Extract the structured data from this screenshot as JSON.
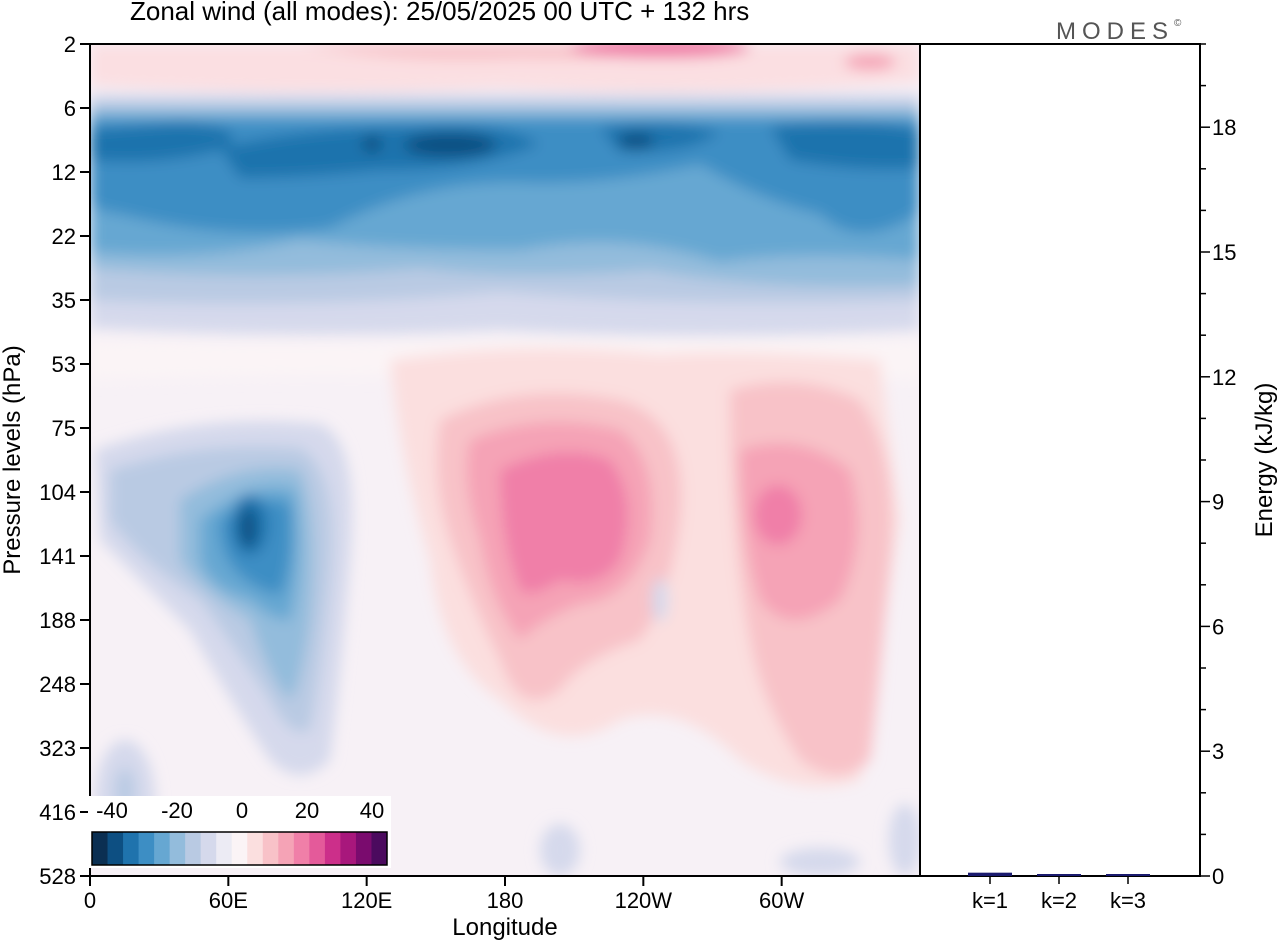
{
  "header": {
    "title": "Zonal wind (all modes):  25/05/2025  00 UTC  + 132 hrs",
    "brand": "MODES",
    "brand_mark": "©"
  },
  "chart_data": [
    {
      "type": "heatmap",
      "xlabel": "Longitude",
      "ylabel": "Pressure levels (hPa)",
      "x_ticks": [
        "0",
        "60E",
        "120E",
        "180",
        "120W",
        "60W"
      ],
      "y_ticks": [
        "2",
        "6",
        "12",
        "22",
        "35",
        "53",
        "75",
        "104",
        "141",
        "188",
        "248",
        "323",
        "416",
        "528"
      ],
      "colorbar": {
        "labels": [
          "-40",
          "-20",
          "0",
          "20",
          "40"
        ],
        "colors": [
          "#0b2f52",
          "#0d4f82",
          "#1f73ad",
          "#3d8ec4",
          "#66a7d2",
          "#93bcdc",
          "#b9cae3",
          "#d5d9ec",
          "#ecebf4",
          "#fbf4f6",
          "#fbdfdf",
          "#f8c2c8",
          "#f5a3b6",
          "#f07fa8",
          "#e45a9a",
          "#cc2f8a",
          "#a8177c",
          "#7a0b6e",
          "#4b0a5e"
        ]
      },
      "features": [
        {
          "type": "band",
          "level_range": [
            "6",
            "35"
          ],
          "sign": "easterly",
          "peak_value": -40
        },
        {
          "type": "band",
          "level_range": [
            "2",
            "4"
          ],
          "sign": "westerly",
          "peak_value": 25
        },
        {
          "type": "blob",
          "center_longitude": "60E",
          "level": "141",
          "peak_value": -35
        },
        {
          "type": "blob",
          "center_longitude": "170W",
          "level": "141",
          "peak_value": 20
        },
        {
          "type": "blob",
          "center_longitude": "80W",
          "level": "141",
          "peak_value": 18
        }
      ]
    },
    {
      "type": "bar",
      "ylabel": "Energy (kJ/kg)",
      "categories": [
        "k=1",
        "k=2",
        "k=3"
      ],
      "values": [
        0.08,
        0.04,
        0.04
      ],
      "ylim": [
        0,
        20
      ],
      "y_ticks": [
        "0",
        "3",
        "6",
        "9",
        "12",
        "15",
        "18"
      ]
    }
  ]
}
